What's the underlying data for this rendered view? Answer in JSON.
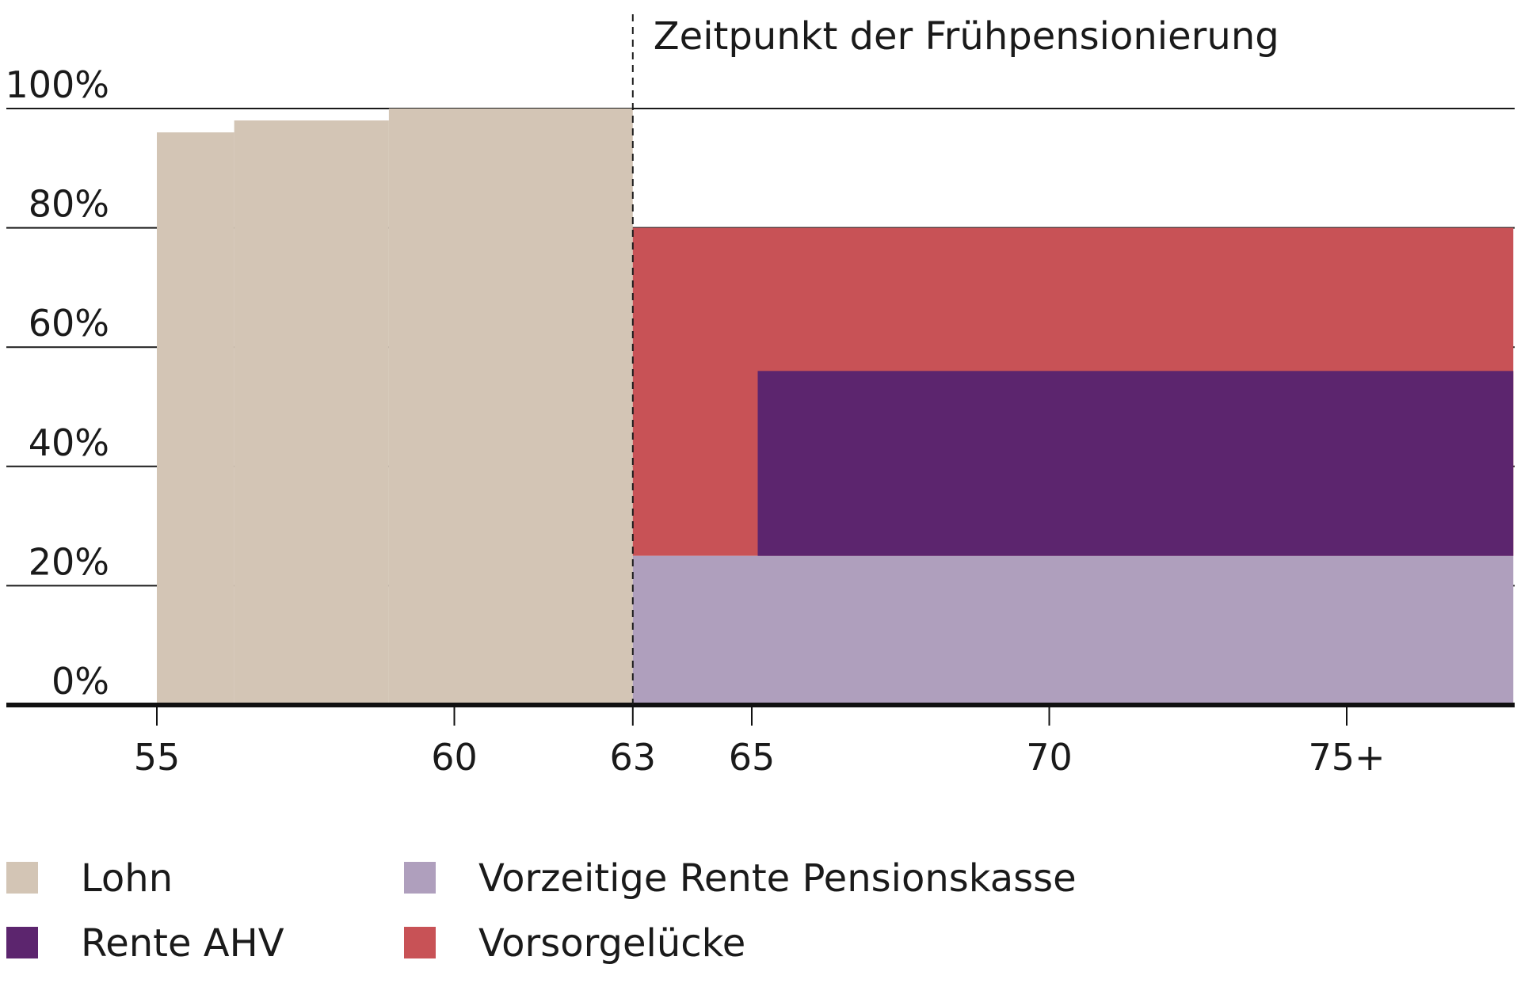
{
  "chart_data": {
    "type": "area",
    "annotation": {
      "label": "Zeitpunkt der Frühpensionierung",
      "x": 63
    },
    "y_ticks": [
      {
        "value": 0,
        "label": "0%"
      },
      {
        "value": 20,
        "label": "20%"
      },
      {
        "value": 40,
        "label": "40%"
      },
      {
        "value": 60,
        "label": "60%"
      },
      {
        "value": 80,
        "label": "80%"
      },
      {
        "value": 100,
        "label": "100%"
      }
    ],
    "x_ticks": [
      {
        "value": 55,
        "label": "55"
      },
      {
        "value": 60,
        "label": "60"
      },
      {
        "value": 63,
        "label": "63"
      },
      {
        "value": 65,
        "label": "65"
      },
      {
        "value": 70,
        "label": "70"
      },
      {
        "value": 75,
        "label": "75+"
      }
    ],
    "xlim": [
      52.5,
      77.8
    ],
    "ylim": [
      0,
      100
    ],
    "grid": "horizontal",
    "legend_position": "bottom",
    "series": [
      {
        "name": "Lohn",
        "color": "#d3c5b5",
        "segments": [
          {
            "x0": 55,
            "x1": 56.3,
            "y0": 0,
            "y1": 96
          },
          {
            "x0": 56.3,
            "x1": 58.9,
            "y0": 0,
            "y1": 98
          },
          {
            "x0": 58.9,
            "x1": 63,
            "y0": 0,
            "y1": 100
          }
        ]
      },
      {
        "name": "Vorzeitige Rente Pensionskasse",
        "color": "#af9fbd",
        "segments": [
          {
            "x0": 63,
            "x1": 77.8,
            "y0": 0,
            "y1": 25
          }
        ]
      },
      {
        "name": "Rente AHV",
        "color": "#5c256e",
        "segments": [
          {
            "x0": 65.1,
            "x1": 77.8,
            "y0": 25,
            "y1": 56
          }
        ]
      },
      {
        "name": "Vorsorgelücke",
        "color": "#c85256",
        "segments": [
          {
            "x0": 63,
            "x1": 77.8,
            "y0": 25,
            "y1": 80
          }
        ]
      }
    ],
    "draw_order": [
      "Lohn",
      "Vorsorgelücke",
      "Vorzeitige Rente Pensionskasse",
      "Rente AHV"
    ],
    "legend": [
      {
        "name": "Lohn",
        "color": "#d3c5b5"
      },
      {
        "name": "Vorzeitige Rente Pensionskasse",
        "color": "#af9fbd"
      },
      {
        "name": "Rente AHV",
        "color": "#5c256e"
      },
      {
        "name": "Vorsorgelücke",
        "color": "#c85256"
      }
    ]
  }
}
